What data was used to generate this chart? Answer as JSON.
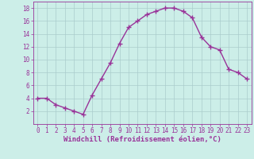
{
  "x": [
    0,
    1,
    2,
    3,
    4,
    5,
    6,
    7,
    8,
    9,
    10,
    11,
    12,
    13,
    14,
    15,
    16,
    17,
    18,
    19,
    20,
    21,
    22,
    23
  ],
  "y": [
    4.0,
    4.0,
    3.0,
    2.5,
    2.0,
    1.5,
    4.5,
    7.0,
    9.5,
    12.5,
    15.0,
    16.0,
    17.0,
    17.5,
    18.0,
    18.0,
    17.5,
    16.5,
    13.5,
    12.0,
    11.5,
    8.5,
    8.0,
    7.0
  ],
  "line_color": "#993399",
  "marker_color": "#993399",
  "bg_color": "#cceee8",
  "grid_color": "#aacccc",
  "xlabel": "Windchill (Refroidissement éolien,°C)",
  "xlabel_color": "#993399",
  "xlim": [
    -0.5,
    23.5
  ],
  "ylim": [
    0,
    19
  ],
  "yticks": [
    2,
    4,
    6,
    8,
    10,
    12,
    14,
    16,
    18
  ],
  "xticks": [
    0,
    1,
    2,
    3,
    4,
    5,
    6,
    7,
    8,
    9,
    10,
    11,
    12,
    13,
    14,
    15,
    16,
    17,
    18,
    19,
    20,
    21,
    22,
    23
  ],
  "tick_label_size": 5.5,
  "xlabel_fontsize": 6.5,
  "line_width": 1.0,
  "marker_size": 4
}
